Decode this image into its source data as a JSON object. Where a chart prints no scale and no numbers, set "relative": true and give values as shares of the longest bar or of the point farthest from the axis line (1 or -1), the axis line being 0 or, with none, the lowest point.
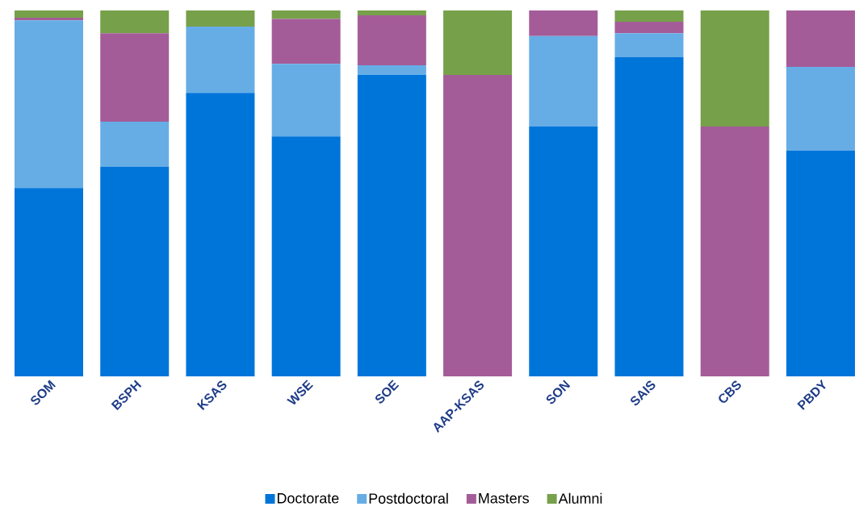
{
  "chart_data": {
    "type": "bar",
    "stacked": true,
    "relative": true,
    "legend": "bottom",
    "categories": [
      "SOM",
      "BSPH",
      "KSAS",
      "WSE",
      "SOE",
      "AAP-KSAS",
      "SON",
      "SAIS",
      "CBS",
      "PBDY"
    ],
    "series": [
      {
        "name": "Doctorate",
        "color": "#0075d9",
        "values": [
          0.515,
          0.573,
          0.775,
          0.656,
          0.824,
          0,
          0.683,
          0.872,
          0,
          0.617
        ]
      },
      {
        "name": "Postdoctoral",
        "color": "#66ade6",
        "values": [
          0.458,
          0.123,
          0.181,
          0.198,
          0.026,
          0,
          0.247,
          0.066,
          0,
          0.229
        ]
      },
      {
        "name": "Masters",
        "color": "#a45c98",
        "values": [
          0.007,
          0.242,
          0,
          0.123,
          0.137,
          0.824,
          0.07,
          0.031,
          0.683,
          0.154
        ]
      },
      {
        "name": "Alumni",
        "color": "#77a04a",
        "values": [
          0.02,
          0.062,
          0.044,
          0.023,
          0.013,
          0.176,
          0,
          0.031,
          0.317,
          0
        ]
      }
    ]
  }
}
